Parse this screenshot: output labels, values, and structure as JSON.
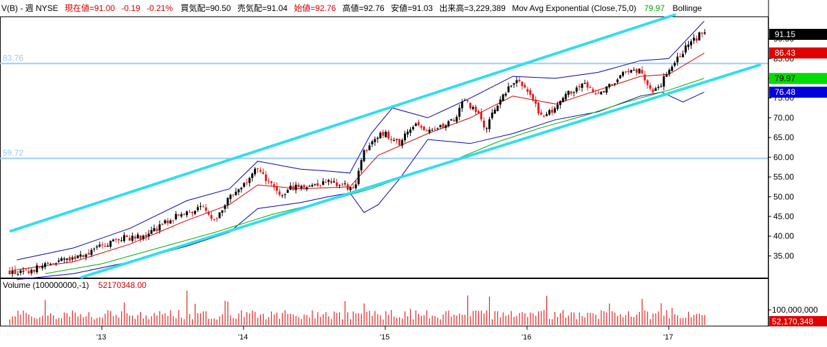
{
  "header": {
    "symbol": "V(B) - 週  NYSE",
    "last_label": "現在値=91.00",
    "change": "-0.19",
    "change_pct": "-0.21%",
    "bid": "買気配=90.50",
    "ask": "売気配=91.04",
    "open_label": "始値=92.76",
    "high": "高値=92.76",
    "low": "安値=91.03",
    "volume": "出来高=3,229,389",
    "indicator": "Mov Avg Exponential (Close,75,0)",
    "indicator_value": "79.97",
    "indicator2": "Bollinge"
  },
  "colors": {
    "up_candle": "#000000",
    "down_candle": "#e02020",
    "channel": "#33ddee",
    "hline": "#99ccee",
    "bollinger": "#0000aa",
    "ema_short": "#cc0000",
    "ema_long": "#00aa00",
    "header_red": "#cc0000",
    "header_green": "#00aa00"
  },
  "price_labels": {
    "last": "91.15",
    "ema_short": "86.43",
    "ema_long": "79.97",
    "bb_lower": "76.48"
  },
  "hlines": [
    {
      "label": "83.76",
      "value": 83.76
    },
    {
      "label": "59.72",
      "value": 59.72
    }
  ],
  "volume_panel": {
    "title": "Volume (100000000,-1)",
    "value": "52170348.00",
    "axis_label": "100,000,000",
    "last_label": "52,170,348"
  },
  "chart_data": {
    "type": "candlestick",
    "period": "weekly",
    "x_tick_labels": [
      "'13",
      "'14",
      "'15",
      "'16",
      "'17"
    ],
    "y_ticks": [
      35,
      40,
      45,
      50,
      55,
      60,
      65,
      70,
      75,
      80,
      85,
      90
    ],
    "y_tick_labels": [
      "35.00",
      "40.00",
      "45.00",
      "50.00",
      "55.00",
      "60.00",
      "65.00",
      "70.00",
      "75.00",
      "80.00",
      "85.00",
      "90.00"
    ],
    "ylim": [
      29.5,
      95.5
    ],
    "start_year": 2012.35,
    "end_year": 2017.25,
    "channel": {
      "upper": [
        {
          "year": 2012.35,
          "value": 41.2
        },
        {
          "year": 2017.05,
          "value": 96.2
        }
      ],
      "lower": [
        {
          "year": 2012.85,
          "value": 29.5
        },
        {
          "year": 2017.65,
          "value": 83.5
        }
      ]
    },
    "close_path": [
      [
        2012.35,
        31.0
      ],
      [
        2012.45,
        30.5
      ],
      [
        2012.55,
        32.0
      ],
      [
        2012.7,
        33.5
      ],
      [
        2012.85,
        35.0
      ],
      [
        2013.0,
        37.5
      ],
      [
        2013.15,
        39.5
      ],
      [
        2013.3,
        40.0
      ],
      [
        2013.45,
        43.5
      ],
      [
        2013.55,
        45.5
      ],
      [
        2013.7,
        47.0
      ],
      [
        2013.8,
        44.5
      ],
      [
        2013.9,
        50.0
      ],
      [
        2014.0,
        53.0
      ],
      [
        2014.07,
        57.0
      ],
      [
        2014.15,
        55.0
      ],
      [
        2014.25,
        50.0
      ],
      [
        2014.35,
        52.5
      ],
      [
        2014.5,
        53.0
      ],
      [
        2014.6,
        54.0
      ],
      [
        2014.7,
        53.0
      ],
      [
        2014.78,
        51.5
      ],
      [
        2014.83,
        60.0
      ],
      [
        2014.92,
        65.0
      ],
      [
        2015.0,
        66.0
      ],
      [
        2015.1,
        63.5
      ],
      [
        2015.2,
        68.5
      ],
      [
        2015.3,
        66.0
      ],
      [
        2015.4,
        68.0
      ],
      [
        2015.5,
        69.5
      ],
      [
        2015.55,
        74.5
      ],
      [
        2015.65,
        71.0
      ],
      [
        2015.7,
        67.0
      ],
      [
        2015.8,
        74.0
      ],
      [
        2015.92,
        80.0
      ],
      [
        2016.0,
        77.0
      ],
      [
        2016.1,
        70.5
      ],
      [
        2016.2,
        72.0
      ],
      [
        2016.3,
        76.5
      ],
      [
        2016.4,
        79.0
      ],
      [
        2016.5,
        75.5
      ],
      [
        2016.6,
        79.0
      ],
      [
        2016.7,
        81.5
      ],
      [
        2016.8,
        82.0
      ],
      [
        2016.88,
        77.0
      ],
      [
        2016.95,
        79.0
      ],
      [
        2017.05,
        84.5
      ],
      [
        2017.15,
        89.0
      ],
      [
        2017.22,
        91.0
      ],
      [
        2017.25,
        91.0
      ]
    ],
    "ema_short_path": [
      [
        2012.4,
        31.5
      ],
      [
        2012.8,
        33.5
      ],
      [
        2013.2,
        38.0
      ],
      [
        2013.6,
        44.0
      ],
      [
        2013.9,
        48.0
      ],
      [
        2014.1,
        53.0
      ],
      [
        2014.4,
        52.0
      ],
      [
        2014.75,
        52.5
      ],
      [
        2014.95,
        60.5
      ],
      [
        2015.3,
        66.0
      ],
      [
        2015.6,
        70.0
      ],
      [
        2015.9,
        75.5
      ],
      [
        2016.2,
        73.5
      ],
      [
        2016.5,
        77.0
      ],
      [
        2016.8,
        80.5
      ],
      [
        2017.0,
        81.0
      ],
      [
        2017.25,
        86.4
      ]
    ],
    "ema_long_path": [
      [
        2012.6,
        30.5
      ],
      [
        2013.0,
        33.0
      ],
      [
        2013.4,
        37.0
      ],
      [
        2013.8,
        41.0
      ],
      [
        2014.2,
        45.5
      ],
      [
        2014.6,
        49.0
      ],
      [
        2014.9,
        52.0
      ],
      [
        2015.2,
        56.0
      ],
      [
        2015.5,
        59.5
      ],
      [
        2015.8,
        64.0
      ],
      [
        2016.1,
        67.5
      ],
      [
        2016.4,
        70.5
      ],
      [
        2016.7,
        74.0
      ],
      [
        2017.0,
        77.0
      ],
      [
        2017.25,
        80.0
      ]
    ],
    "bb_upper_path": [
      [
        2012.4,
        34.0
      ],
      [
        2012.8,
        37.0
      ],
      [
        2013.2,
        42.0
      ],
      [
        2013.6,
        49.0
      ],
      [
        2013.9,
        52.0
      ],
      [
        2014.1,
        59.0
      ],
      [
        2014.4,
        57.0
      ],
      [
        2014.6,
        56.5
      ],
      [
        2014.75,
        56.0
      ],
      [
        2014.9,
        66.0
      ],
      [
        2015.05,
        72.5
      ],
      [
        2015.3,
        70.0
      ],
      [
        2015.6,
        75.0
      ],
      [
        2015.9,
        80.5
      ],
      [
        2016.2,
        80.0
      ],
      [
        2016.5,
        81.5
      ],
      [
        2016.8,
        84.5
      ],
      [
        2017.0,
        85.0
      ],
      [
        2017.25,
        94.5
      ]
    ],
    "bb_lower_path": [
      [
        2012.4,
        29.0
      ],
      [
        2012.8,
        30.5
      ],
      [
        2013.2,
        33.5
      ],
      [
        2013.6,
        37.5
      ],
      [
        2013.9,
        41.0
      ],
      [
        2014.1,
        47.0
      ],
      [
        2014.4,
        48.5
      ],
      [
        2014.6,
        50.0
      ],
      [
        2014.75,
        51.0
      ],
      [
        2014.85,
        46.0
      ],
      [
        2014.95,
        48.0
      ],
      [
        2015.1,
        54.5
      ],
      [
        2015.3,
        64.5
      ],
      [
        2015.6,
        63.5
      ],
      [
        2015.9,
        66.0
      ],
      [
        2016.2,
        69.5
      ],
      [
        2016.5,
        71.5
      ],
      [
        2016.8,
        75.5
      ],
      [
        2016.95,
        76.5
      ],
      [
        2017.1,
        74.0
      ],
      [
        2017.25,
        76.5
      ]
    ],
    "volume_scale_max": 100000000,
    "last_volume": 52170348
  }
}
